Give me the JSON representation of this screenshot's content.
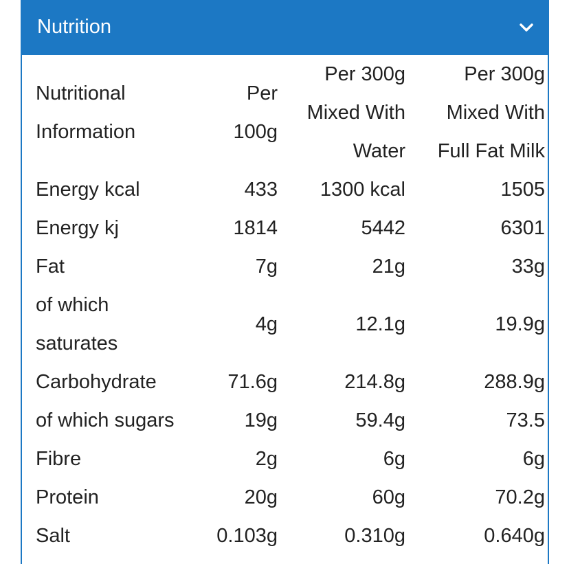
{
  "accordion": {
    "title": "Nutrition",
    "chevron_icon": "chevron-down-icon",
    "header_color": "#1c78c4"
  },
  "table": {
    "headers": [
      {
        "lines": [
          "Nutritional",
          "Information"
        ]
      },
      {
        "lines": [
          "Per",
          "100g"
        ]
      },
      {
        "lines": [
          "Per 300g",
          "Mixed With",
          "Water"
        ]
      },
      {
        "lines": [
          "Per 300g",
          "Mixed With",
          "Full Fat Milk"
        ]
      }
    ],
    "rows": [
      {
        "label_lines": [
          "Energy kcal"
        ],
        "values": [
          "433",
          "1300 kcal",
          "1505"
        ]
      },
      {
        "label_lines": [
          "Energy kj"
        ],
        "values": [
          "1814",
          "5442",
          "6301"
        ]
      },
      {
        "label_lines": [
          "Fat"
        ],
        "values": [
          "7g",
          "21g",
          "33g"
        ]
      },
      {
        "label_lines": [
          "of which",
          "saturates"
        ],
        "values": [
          "4g",
          "12.1g",
          "19.9g"
        ]
      },
      {
        "label_lines": [
          "Carbohydrate"
        ],
        "values": [
          "71.6g",
          "214.8g",
          "288.9g"
        ]
      },
      {
        "label_lines": [
          "of which sugars"
        ],
        "values": [
          "19g",
          "59.4g",
          "73.5"
        ]
      },
      {
        "label_lines": [
          "Fibre"
        ],
        "values": [
          "2g",
          "6g",
          "6g"
        ]
      },
      {
        "label_lines": [
          "Protein"
        ],
        "values": [
          "20g",
          "60g",
          "70.2g"
        ]
      },
      {
        "label_lines": [
          "Salt"
        ],
        "values": [
          "0.103g",
          "0.310g",
          "0.640g"
        ]
      }
    ]
  }
}
